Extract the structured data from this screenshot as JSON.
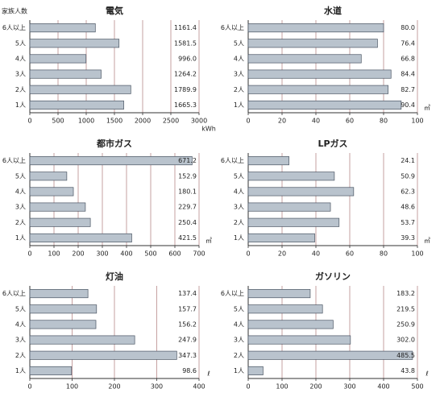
{
  "chart_data": [
    {
      "type": "bar",
      "title": "電気",
      "ylabel": "家族人数",
      "unit": "kWh",
      "categories": [
        "1人",
        "2人",
        "3人",
        "4人",
        "5人",
        "6人以上"
      ],
      "values": [
        1665.3,
        1789.9,
        1264.2,
        996.0,
        1581.5,
        1161.4
      ],
      "value_labels": [
        "1665.3",
        "1789.9",
        "1264.2",
        "996.0",
        "1581.5",
        "1161.4"
      ],
      "xlim": [
        0,
        3000
      ],
      "xticks": [
        0,
        500,
        1000,
        1500,
        2000,
        2500,
        3000
      ],
      "color": "#b9c3cd",
      "grid": true
    },
    {
      "type": "bar",
      "title": "水道",
      "unit": "㎥",
      "categories": [
        "1人",
        "2人",
        "3人",
        "4人",
        "5人",
        "6人以上"
      ],
      "values": [
        90.4,
        82.7,
        84.4,
        66.8,
        76.4,
        80.0
      ],
      "value_labels": [
        "90.4",
        "82.7",
        "84.4",
        "66.8",
        "76.4",
        "80.0"
      ],
      "xlim": [
        0,
        100
      ],
      "xticks": [
        0,
        20,
        40,
        60,
        80,
        100
      ],
      "color": "#b9c3cd",
      "grid": true
    },
    {
      "type": "bar",
      "title": "都市ガス",
      "unit": "㎥",
      "categories": [
        "1人",
        "2人",
        "3人",
        "4人",
        "5人",
        "6人以上"
      ],
      "values": [
        421.5,
        250.4,
        229.7,
        180.1,
        152.9,
        671.2
      ],
      "value_labels": [
        "421.5",
        "250.4",
        "229.7",
        "180.1",
        "152.9",
        "671.2"
      ],
      "xlim": [
        0,
        700
      ],
      "xticks": [
        0,
        100,
        200,
        300,
        400,
        500,
        600,
        700
      ],
      "color": "#b9c3cd",
      "grid": true
    },
    {
      "type": "bar",
      "title": "LPガス",
      "unit": "㎥",
      "categories": [
        "1人",
        "2人",
        "3人",
        "4人",
        "5人",
        "6人以上"
      ],
      "values": [
        39.3,
        53.7,
        48.6,
        62.3,
        50.9,
        24.1
      ],
      "value_labels": [
        "39.3",
        "53.7",
        "48.6",
        "62.3",
        "50.9",
        "24.1"
      ],
      "xlim": [
        0,
        100
      ],
      "xticks": [
        0,
        20,
        40,
        60,
        80,
        100
      ],
      "color": "#b9c3cd",
      "grid": true
    },
    {
      "type": "bar",
      "title": "灯油",
      "unit": "ℓ",
      "categories": [
        "1人",
        "2人",
        "3人",
        "4人",
        "5人",
        "6人以上"
      ],
      "values": [
        98.6,
        347.3,
        247.9,
        156.2,
        157.7,
        137.4
      ],
      "value_labels": [
        "98.6",
        "347.3",
        "247.9",
        "156.2",
        "157.7",
        "137.4"
      ],
      "xlim": [
        0,
        400
      ],
      "xticks": [
        0,
        100,
        200,
        300,
        400
      ],
      "color": "#b9c3cd",
      "grid": true
    },
    {
      "type": "bar",
      "title": "ガソリン",
      "unit": "ℓ",
      "categories": [
        "1人",
        "2人",
        "3人",
        "4人",
        "5人",
        "6人以上"
      ],
      "values": [
        43.8,
        485.5,
        302.0,
        250.9,
        219.5,
        183.2
      ],
      "value_labels": [
        "43.8",
        "485.5",
        "302.0",
        "250.9",
        "219.5",
        "183.2"
      ],
      "xlim": [
        0,
        500
      ],
      "xticks": [
        0,
        100,
        200,
        300,
        400,
        500
      ],
      "color": "#b9c3cd",
      "grid": true
    }
  ]
}
